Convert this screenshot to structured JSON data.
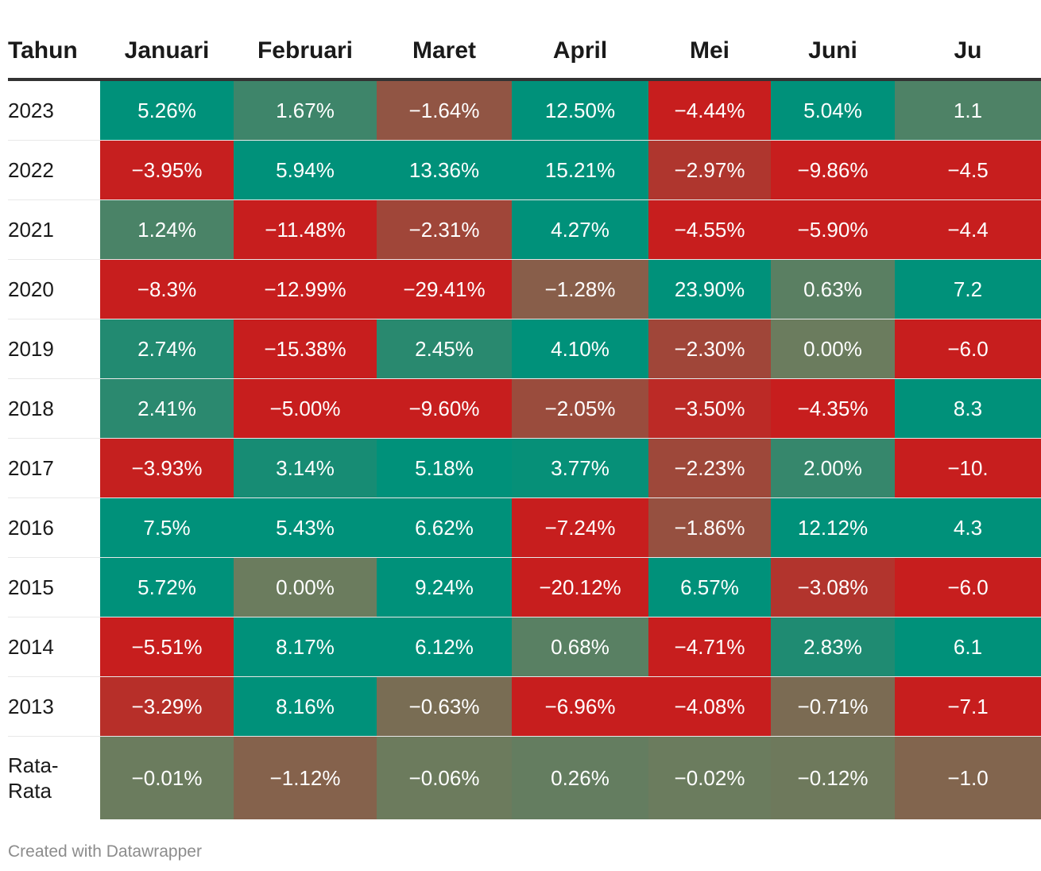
{
  "chart_data": {
    "type": "heatmap",
    "title": "",
    "columns": [
      "Tahun",
      "Januari",
      "Februari",
      "Maret",
      "April",
      "Mei",
      "Juni",
      "Ju"
    ],
    "rows": [
      {
        "label": "2023",
        "cells": [
          "5.26%",
          "1.67%",
          "−1.64%",
          "12.50%",
          "−4.44%",
          "5.04%",
          "1.1"
        ]
      },
      {
        "label": "2022",
        "cells": [
          "−3.95%",
          "5.94%",
          "13.36%",
          "15.21%",
          "−2.97%",
          "−9.86%",
          "−4.5"
        ]
      },
      {
        "label": "2021",
        "cells": [
          "1.24%",
          "−11.48%",
          "−2.31%",
          "4.27%",
          "−4.55%",
          "−5.90%",
          "−4.4"
        ]
      },
      {
        "label": "2020",
        "cells": [
          "−8.3%",
          "−12.99%",
          "−29.41%",
          "−1.28%",
          "23.90%",
          "0.63%",
          "7.2"
        ]
      },
      {
        "label": "2019",
        "cells": [
          "2.74%",
          "−15.38%",
          "2.45%",
          "4.10%",
          "−2.30%",
          "0.00%",
          "−6.0"
        ]
      },
      {
        "label": "2018",
        "cells": [
          "2.41%",
          "−5.00%",
          "−9.60%",
          "−2.05%",
          "−3.50%",
          "−4.35%",
          "8.3"
        ]
      },
      {
        "label": "2017",
        "cells": [
          "−3.93%",
          "3.14%",
          "5.18%",
          "3.77%",
          "−2.23%",
          "2.00%",
          "−10."
        ]
      },
      {
        "label": "2016",
        "cells": [
          "7.5%",
          "5.43%",
          "6.62%",
          "−7.24%",
          "−1.86%",
          "12.12%",
          "4.3"
        ]
      },
      {
        "label": "2015",
        "cells": [
          "5.72%",
          "0.00%",
          "9.24%",
          "−20.12%",
          "6.57%",
          "−3.08%",
          "−6.0"
        ]
      },
      {
        "label": "2014",
        "cells": [
          "−5.51%",
          "8.17%",
          "6.12%",
          "0.68%",
          "−4.71%",
          "2.83%",
          "6.1"
        ]
      },
      {
        "label": "2013",
        "cells": [
          "−3.29%",
          "8.16%",
          "−0.63%",
          "−6.96%",
          "−4.08%",
          "−0.71%",
          "−7.1"
        ]
      },
      {
        "label": "Rata-Rata",
        "cells": [
          "−0.01%",
          "−1.12%",
          "−0.06%",
          "0.26%",
          "−0.02%",
          "−0.12%",
          "−1.0"
        ]
      }
    ],
    "colors": {
      "positive": "#00917a",
      "negative": "#c71e1e",
      "neutral": "#6b7c5e"
    }
  },
  "footer": {
    "source": "Created with Datawrapper"
  }
}
